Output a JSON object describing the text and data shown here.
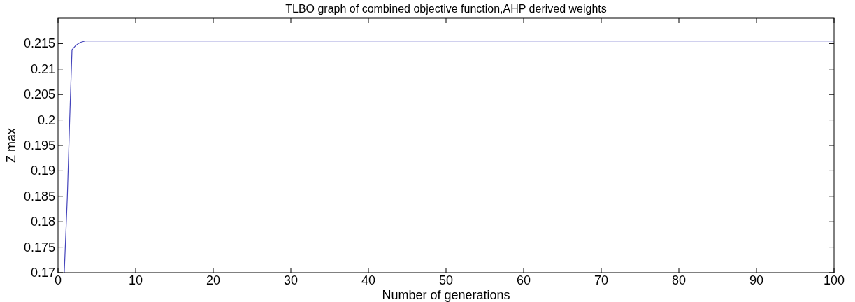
{
  "chart_data": {
    "type": "line",
    "title": "TLBO graph of combined objective function,AHP derived weights",
    "xlabel": "Number of generations",
    "ylabel": "Z max",
    "series": [
      {
        "color": "#4444bb",
        "x": [
          0.8,
          1.2,
          1.5,
          1.8,
          2.2,
          2.6,
          3.0,
          3.5,
          4,
          100
        ],
        "values": [
          0.17,
          0.185,
          0.2,
          0.2138,
          0.2145,
          0.215,
          0.2153,
          0.2155,
          0.2155,
          0.2155
        ]
      }
    ],
    "xlim": [
      0,
      100
    ],
    "ylim": [
      0.17,
      0.22
    ],
    "xticks": [
      0,
      10,
      20,
      30,
      40,
      50,
      60,
      70,
      80,
      90,
      100
    ],
    "yticks": [
      0.17,
      0.175,
      0.18,
      0.185,
      0.19,
      0.195,
      0.2,
      0.205,
      0.21,
      0.215
    ]
  }
}
